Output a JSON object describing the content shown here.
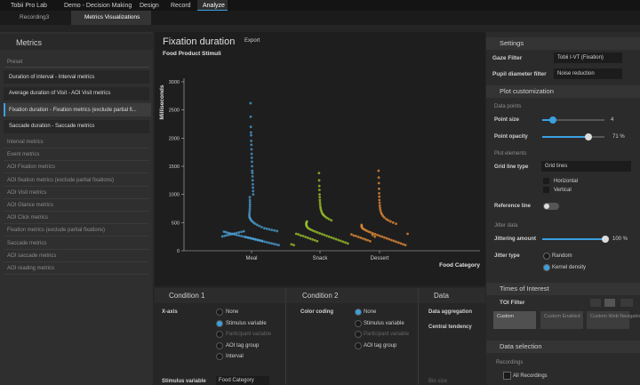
{
  "title_bar": {
    "app": "Tobii Pro Lab",
    "project": "Demo - Decision Making",
    "tabs": [
      "Design",
      "Record",
      "Analyze"
    ]
  },
  "doc_tabs": [
    "Recording3",
    "Metrics Visualizations"
  ],
  "metrics_panel": {
    "title": "Metrics",
    "preset": "Preset",
    "items": [
      "Duration of interval - Interval metrics",
      "Average duration of Visit - AOI Visit metrics",
      "Fixation duration - Fixation metrics (exclude partial fi...",
      "Saccade duration - Saccade metrics"
    ],
    "groups": [
      "Interval metrics",
      "Event metrics",
      "AOI Fixation metrics",
      "AOI fixation metrics (exclude partial fixations)",
      "AOI Visit metrics",
      "AOI Glance metrics",
      "AOI Click metrics",
      "Fixation metrics (exclude partial fixations)",
      "Saccade metrics",
      "AOI saccade metrics",
      "AOI reading metrics"
    ]
  },
  "chart_header": {
    "export": "Export"
  },
  "chart_data": {
    "type": "strip",
    "title": "Fixation duration",
    "subtitle": "Food Product Stimuli",
    "x_label": "Food Category",
    "y_label": "Milliseconds",
    "categories": [
      "Meal",
      "Snack",
      "Dessert"
    ],
    "colors": [
      "#4ea6dc",
      "#a4cc2e",
      "#f0923a"
    ],
    "values": [
      [
        2620,
        2380,
        2200,
        2100,
        2050,
        1950,
        1880,
        1800,
        1720,
        1650,
        1580,
        1500,
        1420,
        1380,
        1320,
        1250,
        1180,
        1120,
        1060,
        1000,
        950,
        900,
        860,
        820,
        780,
        740,
        700,
        660,
        630,
        600,
        580,
        560,
        540,
        520,
        500,
        480,
        460,
        440,
        420,
        400,
        390,
        380,
        370,
        360,
        350,
        340,
        330,
        320,
        310,
        300,
        290,
        280,
        270,
        260,
        250,
        240,
        230,
        220,
        210,
        200,
        190,
        180,
        170,
        160,
        150,
        140,
        130,
        120,
        110,
        100,
        255,
        265,
        275,
        285,
        295,
        305,
        315,
        325,
        335,
        345,
        245,
        235,
        225,
        215,
        205,
        195,
        185,
        175
      ],
      [
        1380,
        1250,
        1150,
        1080,
        1000,
        950,
        900,
        860,
        820,
        780,
        750,
        720,
        690,
        660,
        640,
        620,
        600,
        580,
        560,
        540,
        520,
        500,
        480,
        460,
        440,
        420,
        400,
        385,
        370,
        355,
        340,
        325,
        310,
        295,
        280,
        265,
        250,
        235,
        220,
        205,
        190,
        175,
        160,
        145,
        130,
        115,
        100,
        300,
        290,
        270,
        260,
        245,
        230,
        215,
        200,
        185,
        170
      ],
      [
        1420,
        1300,
        1200,
        1100,
        1020,
        960,
        900,
        850,
        800,
        760,
        720,
        680,
        650,
        620,
        590,
        560,
        540,
        520,
        500,
        480,
        460,
        440,
        420,
        400,
        385,
        370,
        355,
        340,
        325,
        310,
        295,
        280,
        265,
        250,
        235,
        220,
        205,
        190,
        175,
        160,
        145,
        130,
        115,
        100,
        300,
        290,
        270,
        260,
        245,
        230,
        215,
        200,
        185,
        170,
        280,
        250
      ]
    ],
    "ylim": [
      0,
      3000
    ],
    "yticks": [
      0,
      500,
      1000,
      1500,
      2000,
      2500,
      3000
    ],
    "grid": false
  },
  "settings": {
    "title": "Settings",
    "gaze_filter": {
      "label": "Gaze Filter",
      "value": "Tobii I-VT (Fixation)"
    },
    "pupil_filter": {
      "label": "Pupil diameter filter",
      "value": "Noise reduction"
    }
  },
  "plot_customization": {
    "title": "Plot customization",
    "data_points": "Data points",
    "point_size": {
      "label": "Point size",
      "value": "4"
    },
    "point_opacity": {
      "label": "Point opacity",
      "value": "71 %"
    },
    "plot_elements": "Plot elements",
    "grid_line_type": {
      "label": "Grid line type",
      "value": "Grid lines"
    },
    "horizontal": "Horizontal",
    "vertical": "Vertical",
    "reference_line": "Reference line",
    "jitter_data": "Jitter data",
    "jittering_amount": {
      "label": "Jittering amount",
      "value": "100 %"
    },
    "jitter_type": {
      "label": "Jitter type",
      "options": [
        "Random",
        "Kernel density"
      ]
    }
  },
  "toi": {
    "title": "Times of Interest",
    "filter": "TOI Filter",
    "items": [
      "Custom",
      "Custom Enabled",
      "Custom Web Navigation"
    ]
  },
  "data_selection": {
    "title": "Data selection",
    "recordings": "Recordings",
    "all": "All Recordings"
  },
  "condition1": {
    "title": "Condition 1",
    "x_axis": "X-axis",
    "options": [
      "None",
      "Stimulus variable",
      "Participant variable",
      "AOI tag group",
      "Interval"
    ],
    "stimulus_variable": {
      "label": "Stimulus variable",
      "value": "Food Category"
    }
  },
  "condition2": {
    "title": "Condition 2",
    "color_coding": "Color coding",
    "options": [
      "None",
      "Stimulus variable",
      "Participant variable",
      "AOI tag group"
    ]
  },
  "data_panel": {
    "title": "Data",
    "aggregation": "Data aggregation",
    "central_tendency": "Central tendency",
    "bin_size": "Bin size"
  }
}
